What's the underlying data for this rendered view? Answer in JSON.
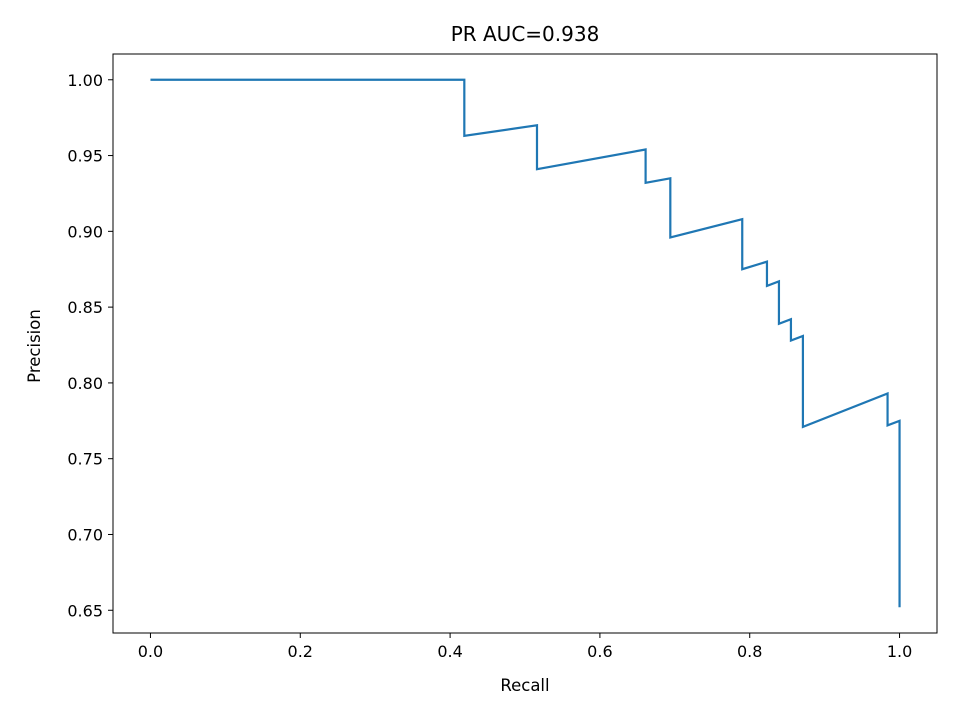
{
  "chart_data": {
    "type": "line",
    "title": "PR AUC=0.938",
    "xlabel": "Recall",
    "ylabel": "Precision",
    "xlim": [
      -0.05,
      1.05
    ],
    "ylim": [
      0.635,
      1.017
    ],
    "xticks": [
      0.0,
      0.2,
      0.4,
      0.6,
      0.8,
      1.0
    ],
    "xtick_labels": [
      "0.0",
      "0.2",
      "0.4",
      "0.6",
      "0.8",
      "1.0"
    ],
    "yticks": [
      0.65,
      0.7,
      0.75,
      0.8,
      0.85,
      0.9,
      0.95,
      1.0
    ],
    "ytick_labels": [
      "0.65",
      "0.70",
      "0.75",
      "0.80",
      "0.85",
      "0.90",
      "0.95",
      "1.00"
    ],
    "grid": false,
    "legend": "none",
    "series": [
      {
        "color": "#1f77b4",
        "drawstyle": "steps-post",
        "x": [
          0.0,
          0.419,
          0.419,
          0.516,
          0.516,
          0.661,
          0.661,
          0.694,
          0.694,
          0.79,
          0.79,
          0.823,
          0.823,
          0.839,
          0.839,
          0.855,
          0.855,
          0.871,
          0.871,
          0.984,
          0.984,
          1.0,
          1.0
        ],
        "y": [
          1.0,
          1.0,
          0.963,
          0.97,
          0.941,
          0.954,
          0.932,
          0.935,
          0.896,
          0.908,
          0.875,
          0.88,
          0.864,
          0.867,
          0.839,
          0.842,
          0.828,
          0.831,
          0.771,
          0.793,
          0.772,
          0.775,
          0.652
        ]
      }
    ]
  }
}
